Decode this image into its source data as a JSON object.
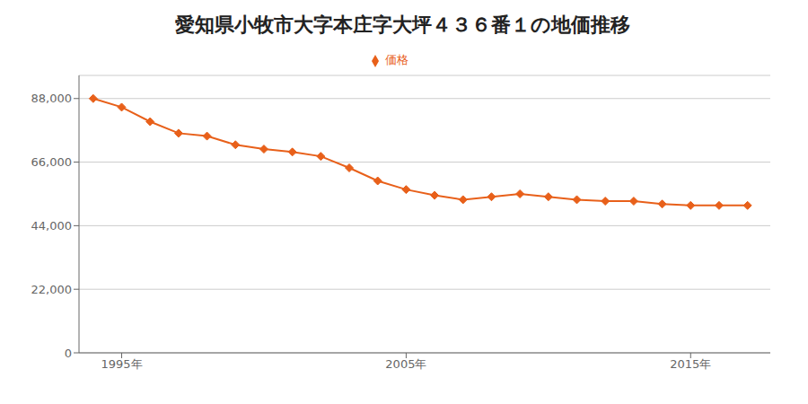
{
  "chart_data": {
    "type": "line",
    "title": "愛知県小牧市大字本庄字大坪４３６番１の地価推移",
    "x": [
      1994,
      1995,
      1996,
      1997,
      1998,
      1999,
      2000,
      2001,
      2002,
      2003,
      2004,
      2005,
      2006,
      2007,
      2008,
      2009,
      2010,
      2011,
      2012,
      2013,
      2014,
      2015,
      2016,
      2017
    ],
    "series": [
      {
        "name": "価格",
        "color": "#e8601a",
        "marker": "diamond",
        "values": [
          88000,
          85000,
          80000,
          76000,
          75000,
          72000,
          70500,
          69500,
          68000,
          64000,
          59500,
          56500,
          54500,
          53000,
          54000,
          55000,
          54000,
          53000,
          52500,
          52500,
          51500,
          51000,
          51000,
          51000
        ]
      }
    ],
    "xlim": [
      1993.5,
      2017.8
    ],
    "xticks": [
      {
        "value": 1995,
        "label": "1995年"
      },
      {
        "value": 2005,
        "label": "2005年"
      },
      {
        "value": 2015,
        "label": "2015年"
      }
    ],
    "ylim": [
      0,
      96000
    ],
    "yticks": [
      0,
      {
        "value": 22000,
        "label": "22,000"
      },
      {
        "value": 44000,
        "label": "44,000"
      },
      {
        "value": 66000,
        "label": "66,000"
      },
      {
        "value": 88000,
        "label": "88,000"
      }
    ],
    "grid": "y",
    "legend": "top"
  }
}
